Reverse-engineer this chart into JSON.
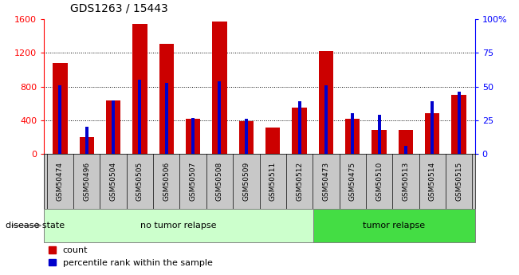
{
  "title": "GDS1263 / 15443",
  "samples": [
    "GSM50474",
    "GSM50496",
    "GSM50504",
    "GSM50505",
    "GSM50506",
    "GSM50507",
    "GSM50508",
    "GSM50509",
    "GSM50511",
    "GSM50512",
    "GSM50473",
    "GSM50475",
    "GSM50510",
    "GSM50513",
    "GSM50514",
    "GSM50515"
  ],
  "counts": [
    1080,
    200,
    640,
    1540,
    1310,
    420,
    1575,
    390,
    310,
    555,
    1220,
    420,
    290,
    290,
    480,
    700
  ],
  "percentile_ranks": [
    51,
    20,
    40,
    55,
    53,
    27,
    54,
    26,
    0,
    39,
    51,
    30,
    29,
    6,
    39,
    46
  ],
  "no_tumor_count": 10,
  "tumor_count": 6,
  "left_ylim": [
    0,
    1600
  ],
  "right_ylim": [
    0,
    100
  ],
  "left_yticks": [
    0,
    400,
    800,
    1200,
    1600
  ],
  "right_yticks": [
    0,
    25,
    50,
    75,
    100
  ],
  "bar_color": "#cc0000",
  "percentile_color": "#0000cc",
  "no_tumor_color": "#ccffcc",
  "tumor_color": "#44dd44",
  "tick_bg_color": "#c8c8c8",
  "disease_state_label": "disease state",
  "no_tumor_label": "no tumor relapse",
  "tumor_label": "tumor relapse",
  "count_legend": "count",
  "percentile_legend": "percentile rank within the sample",
  "red_bar_width": 0.55,
  "blue_bar_width": 0.12
}
